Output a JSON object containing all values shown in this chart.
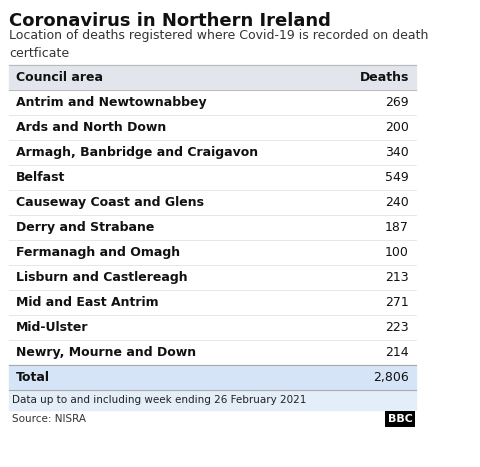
{
  "title": "Coronavirus in Northern Ireland",
  "subtitle": "Location of deaths registered where Covid-19 is recorded on death\ncertficate",
  "col1_header": "Council area",
  "col2_header": "Deaths",
  "rows": [
    [
      "Antrim and Newtownabbey",
      "269"
    ],
    [
      "Ards and North Down",
      "200"
    ],
    [
      "Armagh, Banbridge and Craigavon",
      "340"
    ],
    [
      "Belfast",
      "549"
    ],
    [
      "Causeway Coast and Glens",
      "240"
    ],
    [
      "Derry and Strabane",
      "187"
    ],
    [
      "Fermanagh and Omagh",
      "100"
    ],
    [
      "Lisburn and Castlereagh",
      "213"
    ],
    [
      "Mid and East Antrim",
      "271"
    ],
    [
      "Mid-Ulster",
      "223"
    ],
    [
      "Newry, Mourne and Down",
      "214"
    ]
  ],
  "total_label": "Total",
  "total_value": "2,806",
  "footnote": "Data up to and including week ending 26 February 2021",
  "source": "Source: NISRA",
  "bbc_logo": "BBC",
  "bg_color": "#ffffff",
  "header_bg": "#e2e5ec",
  "total_bg": "#d6e4f7",
  "footnote_bg": "#e4eef8",
  "title_fontsize": 13,
  "subtitle_fontsize": 9,
  "table_fontsize": 9,
  "header_fontsize": 9,
  "footer_fontsize": 7.5
}
